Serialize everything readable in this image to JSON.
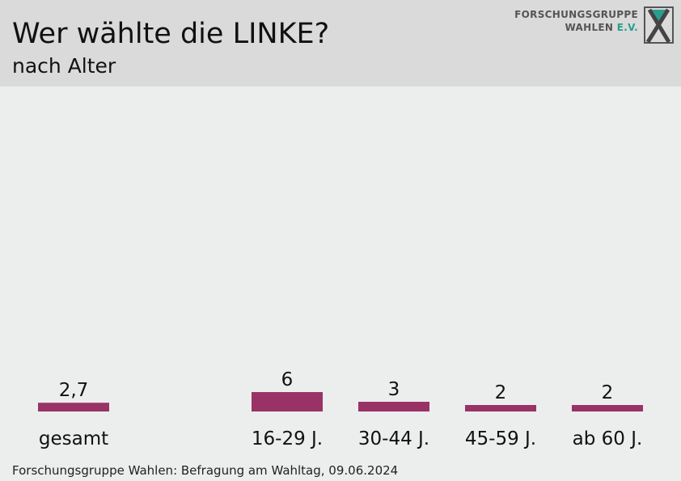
{
  "header": {
    "title": "Wer wählte die LINKE?",
    "subtitle": "nach Alter"
  },
  "logo": {
    "line1": "FORSCHUNGSGRUPPE",
    "line2_main": "WAHLEN",
    "line2_accent": "E.V."
  },
  "footer": {
    "source": "Forschungsgruppe Wahlen: Befragung am Wahltag, 09.06.2024"
  },
  "colors": {
    "bar": "#993366",
    "background": "#ebeeed",
    "header": "#dadada",
    "logo_accent": "#2a9d8f"
  },
  "chart_data": {
    "type": "bar",
    "categories": [
      "gesamt",
      "16-29 J.",
      "30-44 J.",
      "45-59 J.",
      "ab 60 J."
    ],
    "values": [
      2.7,
      6,
      3,
      2,
      2
    ],
    "value_labels": [
      "2,7",
      "6",
      "3",
      "2",
      "2"
    ],
    "title": "Wer wählte die LINKE?",
    "subtitle": "nach Alter",
    "xlabel": "",
    "ylabel": "",
    "ylim": [
      0,
      100
    ],
    "grid": false,
    "legend": "none"
  }
}
